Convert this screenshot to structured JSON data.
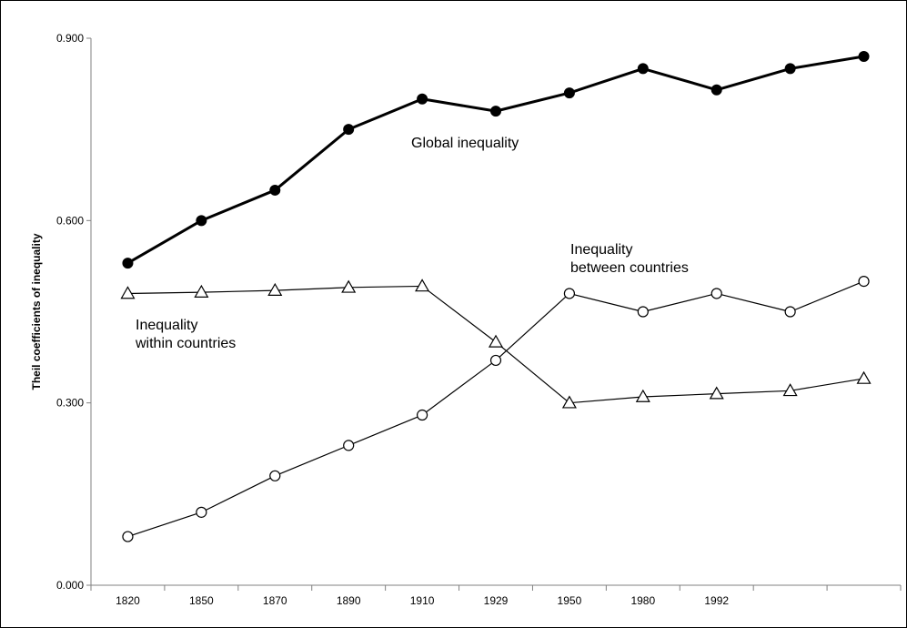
{
  "chart_data": {
    "type": "line",
    "title": "",
    "xlabel": "",
    "ylabel": "Theil coefficients of inequality",
    "ylim": [
      0,
      0.9
    ],
    "grid": false,
    "categories": [
      "1820",
      "1850",
      "1870",
      "1890",
      "1910",
      "1929",
      "1950",
      "1980",
      "1992",
      "",
      ""
    ],
    "yticks": [
      "0.000",
      "0.300",
      "0.600",
      "0.900"
    ],
    "series": [
      {
        "name": "Global inequality",
        "marker": "filled-circle",
        "line_weight": "bold",
        "values": [
          0.53,
          0.6,
          0.65,
          0.75,
          0.8,
          0.78,
          0.81,
          0.85,
          0.815,
          0.85,
          0.87
        ]
      },
      {
        "name": "Inequality within countries",
        "marker": "open-triangle",
        "line_weight": "thin",
        "values": [
          0.48,
          0.482,
          0.485,
          0.49,
          0.492,
          0.4,
          0.3,
          0.31,
          0.315,
          0.32,
          0.34
        ]
      },
      {
        "name": "Inequality between countries",
        "marker": "open-circle",
        "line_weight": "thin",
        "values": [
          0.08,
          0.12,
          0.18,
          0.23,
          0.28,
          0.37,
          0.48,
          0.45,
          0.48,
          0.45,
          0.5
        ]
      }
    ],
    "annotations": [
      {
        "series": "Global inequality",
        "lines": [
          "Global inequality"
        ]
      },
      {
        "series": "Inequality between countries",
        "lines": [
          "Inequality",
          "between countries"
        ]
      },
      {
        "series": "Inequality within countries",
        "lines": [
          "Inequality",
          "within countries"
        ]
      }
    ],
    "colors": {
      "line": "#000000",
      "axis": "#808080",
      "background": "#ffffff"
    }
  }
}
